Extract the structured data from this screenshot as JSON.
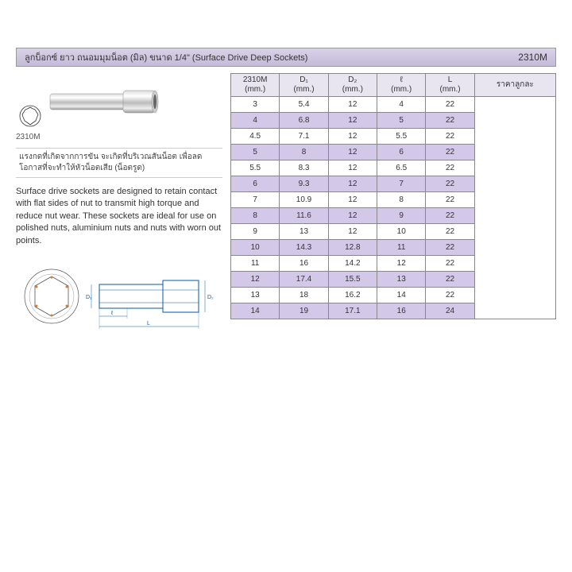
{
  "header": {
    "title": "ลูกบ็อกซ์ ยาว ถนอมมุมน็อต (มิล) ขนาด 1/4\" (Surface Drive Deep Sockets)",
    "code": "2310M"
  },
  "product_label": "2310M",
  "desc_thai": "แรงกดที่เกิดจากการขัน จะเกิดที่บริเวณสันน็อต เพื่อลดโอกาสที่จะทำให้หัวน็อตเสีย (น็อตรูด)",
  "desc_en": "Surface drive sockets are designed to retain contact with flat sides of nut to transmit high torque and reduce nut wear. These sockets are ideal for use on polished nuts, aluminium nuts and nuts with worn out points.",
  "table": {
    "columns": [
      {
        "line1": "2310M",
        "line2": "(mm.)"
      },
      {
        "line1": "D₁",
        "line2": "(mm.)"
      },
      {
        "line1": "D₂",
        "line2": "(mm.)"
      },
      {
        "line1": "ℓ",
        "line2": "(mm.)"
      },
      {
        "line1": "L",
        "line2": "(mm.)"
      },
      {
        "line1": "ราคาลูกละ",
        "line2": ""
      }
    ],
    "rows": [
      {
        "size": "3",
        "d1": "5.4",
        "d2": "12",
        "l": "4",
        "L": "22"
      },
      {
        "size": "4",
        "d1": "6.8",
        "d2": "12",
        "l": "5",
        "L": "22"
      },
      {
        "size": "4.5",
        "d1": "7.1",
        "d2": "12",
        "l": "5.5",
        "L": "22"
      },
      {
        "size": "5",
        "d1": "8",
        "d2": "12",
        "l": "6",
        "L": "22"
      },
      {
        "size": "5.5",
        "d1": "8.3",
        "d2": "12",
        "l": "6.5",
        "L": "22"
      },
      {
        "size": "6",
        "d1": "9.3",
        "d2": "12",
        "l": "7",
        "L": "22"
      },
      {
        "size": "7",
        "d1": "10.9",
        "d2": "12",
        "l": "8",
        "L": "22"
      },
      {
        "size": "8",
        "d1": "11.6",
        "d2": "12",
        "l": "9",
        "L": "22"
      },
      {
        "size": "9",
        "d1": "13",
        "d2": "12",
        "l": "10",
        "L": "22"
      },
      {
        "size": "10",
        "d1": "14.3",
        "d2": "12.8",
        "l": "11",
        "L": "22"
      },
      {
        "size": "11",
        "d1": "16",
        "d2": "14.2",
        "l": "12",
        "L": "22"
      },
      {
        "size": "12",
        "d1": "17.4",
        "d2": "15.5",
        "l": "13",
        "L": "22"
      },
      {
        "size": "13",
        "d1": "18",
        "d2": "16.2",
        "l": "14",
        "L": "22"
      },
      {
        "size": "14",
        "d1": "19",
        "d2": "17.1",
        "l": "16",
        "L": "24"
      }
    ]
  },
  "colors": {
    "header_bg_top": "#d8d2e8",
    "header_bg_bottom": "#c4bcd8",
    "row_even": "#d4c8e8",
    "row_odd": "#ffffff",
    "border": "#888888"
  }
}
